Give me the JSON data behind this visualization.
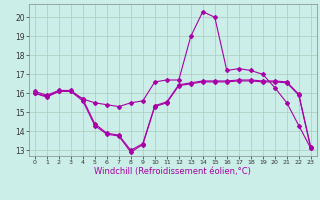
{
  "xlabel": "Windchill (Refroidissement éolien,°C)",
  "background_color": "#cceee8",
  "grid_color": "#aaccbb",
  "line_color": "#aa00aa",
  "xlim": [
    -0.5,
    23.5
  ],
  "ylim": [
    12.7,
    20.7
  ],
  "xticks": [
    0,
    1,
    2,
    3,
    4,
    5,
    6,
    7,
    8,
    9,
    10,
    11,
    12,
    13,
    14,
    15,
    16,
    17,
    18,
    19,
    20,
    21,
    22,
    23
  ],
  "yticks": [
    13,
    14,
    15,
    16,
    17,
    18,
    19,
    20
  ],
  "line1_y": [
    16.0,
    15.8,
    16.1,
    16.1,
    15.7,
    15.5,
    15.4,
    15.3,
    15.5,
    15.6,
    16.6,
    16.7,
    16.7,
    19.0,
    20.3,
    20.0,
    17.2,
    17.3,
    17.2,
    17.0,
    16.3,
    15.5,
    14.3,
    13.1
  ],
  "line2_y": [
    16.0,
    15.85,
    16.1,
    16.1,
    15.6,
    14.3,
    13.85,
    13.75,
    12.9,
    13.3,
    15.3,
    15.5,
    16.4,
    16.5,
    16.6,
    16.6,
    16.6,
    16.65,
    16.65,
    16.6,
    16.6,
    16.55,
    15.9,
    13.1
  ],
  "line3_y": [
    16.1,
    15.9,
    16.15,
    16.15,
    15.7,
    14.4,
    13.9,
    13.8,
    13.0,
    13.35,
    15.35,
    15.55,
    16.45,
    16.55,
    16.65,
    16.65,
    16.65,
    16.7,
    16.7,
    16.65,
    16.65,
    16.6,
    15.95,
    13.15
  ],
  "marker": "D",
  "markersize": 2.0,
  "linewidth": 0.8,
  "xlabel_fontsize": 6.0,
  "xtick_fontsize": 4.5,
  "ytick_fontsize": 5.5
}
